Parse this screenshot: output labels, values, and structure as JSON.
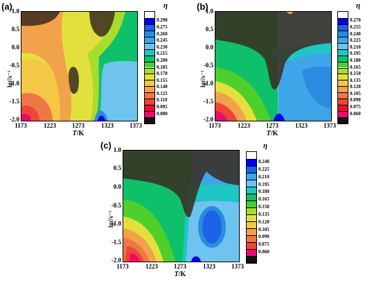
{
  "chart_data": [
    {
      "panel_label": "(a)",
      "type": "heatmap",
      "xlabel_var": "T",
      "xlabel_unit": "/K",
      "ylabel": "lgε̇/s⁻¹",
      "x_ticks": [
        "1173",
        "1223",
        "1273",
        "1323",
        "1373"
      ],
      "y_ticks": [
        "1.0",
        "0.5",
        "0.0",
        "-0.5",
        "-1.0",
        "-1.5",
        "-2.0"
      ],
      "xlim": [
        1173,
        1373
      ],
      "ylim": [
        -2.0,
        1.0
      ],
      "colorbar_title": "η",
      "colorbar_levels": [
        "0.290",
        "0.275",
        "0.260",
        "0.245",
        "0.230",
        "0.215",
        "0.200",
        "0.185",
        "0.170",
        "0.155",
        "0.140",
        "0.125",
        "0.110",
        "0.095",
        "0.080"
      ],
      "colorbar_colors": [
        "#ffffff",
        "#0000ee",
        "#1c62e6",
        "#2a8be0",
        "#3ea5e8",
        "#6ec4ef",
        "#1ec7c3",
        "#0fc06a",
        "#4fcf2c",
        "#a7dc2c",
        "#e3e03d",
        "#f4c747",
        "#f2a24a",
        "#ee7845",
        "#f04438",
        "#ee0c30",
        "#ea0c6a",
        "#111111"
      ],
      "instability_regions": [
        {
          "x_range": [
            1173,
            1235
          ],
          "y_range": [
            0.7,
            1.0
          ]
        },
        {
          "x_range": [
            1275,
            1303
          ],
          "y_range": [
            0.0,
            1.0
          ]
        },
        {
          "x_range": [
            1260,
            1277
          ],
          "y_range": [
            -1.35,
            -0.45
          ]
        }
      ]
    },
    {
      "panel_label": "(b)",
      "type": "heatmap",
      "xlabel_var": "T",
      "xlabel_unit": "/K",
      "ylabel": "lgε̇/s⁻¹",
      "x_ticks": [
        "1173",
        "1223",
        "1273",
        "1323",
        "1373"
      ],
      "y_ticks": [
        "1.0",
        "0.5",
        "0.0",
        "-0.5",
        "-1.0",
        "-1.5",
        "-2.0"
      ],
      "xlim": [
        1173,
        1373
      ],
      "ylim": [
        -2.0,
        1.0
      ],
      "colorbar_title": "η",
      "colorbar_levels": [
        "0.270",
        "0.255",
        "0.240",
        "0.225",
        "0.210",
        "0.195",
        "0.180",
        "0.165",
        "0.150",
        "0.135",
        "0.120",
        "0.105",
        "0.090",
        "0.075",
        "0.060"
      ],
      "colorbar_colors": [
        "#ffffff",
        "#0000ee",
        "#1c62e6",
        "#2a8be0",
        "#3ea5e8",
        "#6ec4ef",
        "#1ec7c3",
        "#0fc06a",
        "#4fcf2c",
        "#a7dc2c",
        "#e3e03d",
        "#f4c747",
        "#f2a24a",
        "#ee7845",
        "#f04438",
        "#ee0c30",
        "#ea0c6a",
        "#111111"
      ],
      "instability_regions": [
        {
          "x_range": [
            1173,
            1373
          ],
          "y_range": [
            0.35,
            1.0
          ]
        },
        {
          "x_range": [
            1262,
            1287
          ],
          "y_range": [
            -1.3,
            0.35
          ]
        }
      ]
    },
    {
      "panel_label": "(c)",
      "type": "heatmap",
      "xlabel_var": "T",
      "xlabel_unit": "/K",
      "ylabel": "lgε̇/s⁻¹",
      "x_ticks": [
        "1173",
        "1223",
        "1273",
        "1323",
        "1373"
      ],
      "y_ticks": [
        "1.0",
        "0.5",
        "0.0",
        "-0.5",
        "-1.0",
        "-1.5",
        "-2.0"
      ],
      "xlim": [
        1173,
        1373
      ],
      "ylim": [
        -2.0,
        1.0
      ],
      "colorbar_title": "η",
      "colorbar_levels": [
        "0.240",
        "0.225",
        "0.210",
        "0.195",
        "0.180",
        "0.165",
        "0.150",
        "0.135",
        "0.120",
        "0.105",
        "0.090",
        "0.075",
        "0.060"
      ],
      "colorbar_colors": [
        "#ffffff",
        "#0000ee",
        "#1c62e6",
        "#3ea5e8",
        "#6ec4ef",
        "#1ec7c3",
        "#0fc06a",
        "#4fcf2c",
        "#a7dc2c",
        "#e3e03d",
        "#f4c747",
        "#f2a24a",
        "#ee7845",
        "#f04438",
        "#ea0c6a",
        "#111111"
      ],
      "instability_regions": [
        {
          "x_range": [
            1173,
            1373
          ],
          "y_range": [
            0.3,
            1.0
          ]
        },
        {
          "x_range": [
            1268,
            1294
          ],
          "y_range": [
            -0.8,
            0.3
          ]
        }
      ]
    }
  ]
}
